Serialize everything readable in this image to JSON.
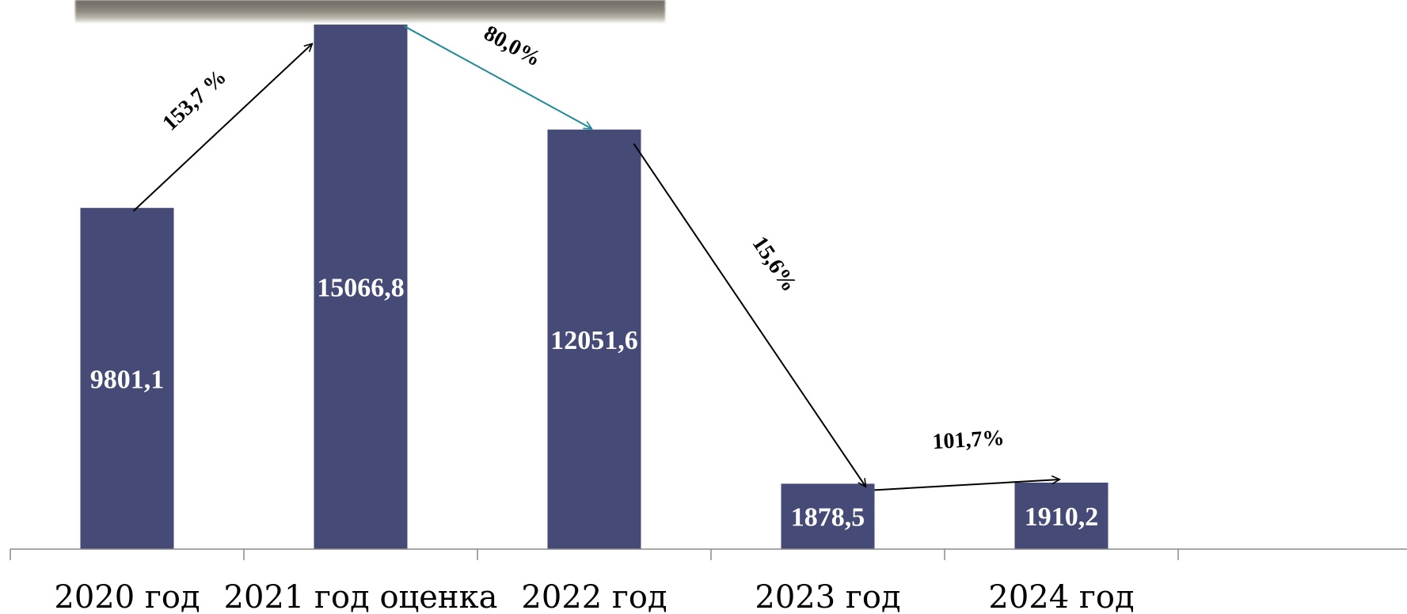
{
  "chart_data": {
    "type": "bar",
    "categories": [
      "2020 год",
      "2021 год оценка",
      "2022 год",
      "2023 год",
      "2024 год"
    ],
    "values": [
      9801.1,
      15066.8,
      12051.6,
      1878.5,
      1910.2
    ],
    "value_labels": [
      "9801,1",
      "15066,8",
      "12051,6",
      "1878,5",
      "1910,2"
    ],
    "ylim": [
      0,
      15500
    ],
    "grid": false,
    "bar_color": "#464a77",
    "label_color": "#ffffff",
    "arrows": [
      {
        "from": 0,
        "to": 1,
        "label": "153,7 %",
        "color": "#000000"
      },
      {
        "from": 1,
        "to": 2,
        "label": "80,0%",
        "color": "#1f8a99"
      },
      {
        "from": 2,
        "to": 3,
        "label": "15,6%",
        "color": "#000000"
      },
      {
        "from": 3,
        "to": 4,
        "label": "101,7%",
        "color": "#000000"
      }
    ]
  }
}
